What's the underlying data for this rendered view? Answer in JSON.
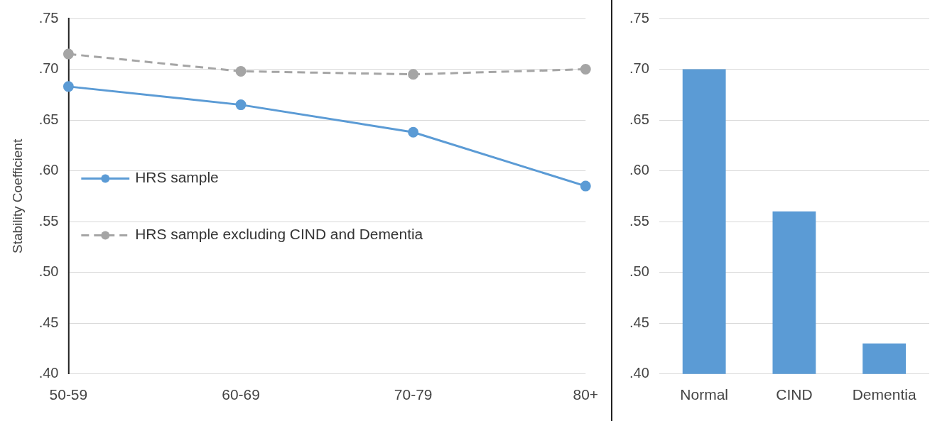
{
  "chart_data": [
    {
      "type": "line",
      "ylabel": "Stability Coefficient",
      "categories": [
        "50-59",
        "60-69",
        "70-79",
        "80+"
      ],
      "series": [
        {
          "name": "HRS sample",
          "color": "#5b9bd5",
          "values": [
            0.683,
            0.665,
            0.638,
            0.585
          ]
        },
        {
          "name": "HRS sample excluding CIND and Dementia",
          "color": "#a5a5a5",
          "line_style": "dashed",
          "values": [
            0.715,
            0.698,
            0.695,
            0.7
          ]
        }
      ],
      "ylim": [
        0.4,
        0.75
      ],
      "yticks": [
        {
          "value": 0.4,
          "label": ".40"
        },
        {
          "value": 0.45,
          "label": ".45"
        },
        {
          "value": 0.5,
          "label": ".50"
        },
        {
          "value": 0.55,
          "label": ".55"
        },
        {
          "value": 0.6,
          "label": ".60"
        },
        {
          "value": 0.65,
          "label": ".65"
        },
        {
          "value": 0.7,
          "label": ".70"
        },
        {
          "value": 0.75,
          "label": ".75"
        }
      ],
      "grid": "y",
      "legend": "left",
      "marker": "circle"
    },
    {
      "type": "bar",
      "categories": [
        "Normal",
        "CIND",
        "Dementia"
      ],
      "values": [
        0.7,
        0.56,
        0.43
      ],
      "color": "#5b9bd5",
      "ylim": [
        0.4,
        0.75
      ],
      "yticks": [
        {
          "value": 0.4,
          "label": ".40"
        },
        {
          "value": 0.45,
          "label": ".45"
        },
        {
          "value": 0.5,
          "label": ".50"
        },
        {
          "value": 0.55,
          "label": ".55"
        },
        {
          "value": 0.6,
          "label": ".60"
        },
        {
          "value": 0.65,
          "label": ".65"
        },
        {
          "value": 0.7,
          "label": ".70"
        },
        {
          "value": 0.75,
          "label": ".75"
        }
      ],
      "grid": "y"
    }
  ]
}
